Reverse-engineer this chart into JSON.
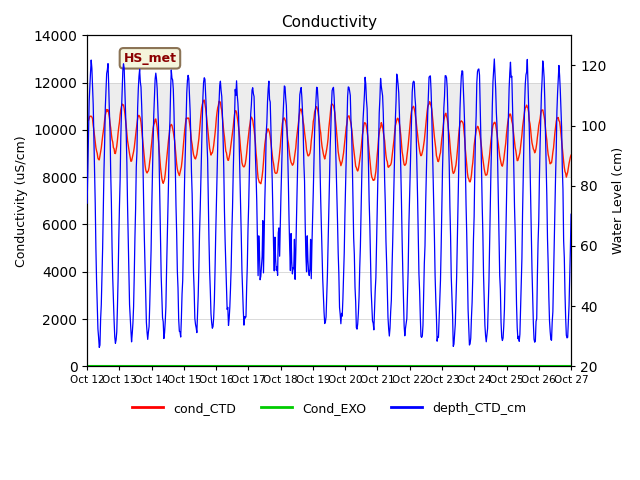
{
  "title": "Conductivity",
  "ylabel_left": "Conductivity (uS/cm)",
  "ylabel_right": "Water Level (cm)",
  "ylim_left": [
    0,
    14000
  ],
  "ylim_right": [
    20,
    130
  ],
  "xlim": [
    0,
    15
  ],
  "xtick_labels": [
    "Oct 12",
    "Oct 13",
    "Oct 14",
    "Oct 15",
    "Oct 16",
    "Oct 17",
    "Oct 18",
    "Oct 19",
    "Oct 20",
    "Oct 21",
    "Oct 22",
    "Oct 23",
    "Oct 24",
    "Oct 25",
    "Oct 26",
    "Oct 27"
  ],
  "xtick_positions": [
    0,
    1,
    2,
    3,
    4,
    5,
    6,
    7,
    8,
    9,
    10,
    11,
    12,
    13,
    14,
    15
  ],
  "shade_band": [
    8000,
    12000
  ],
  "shade_color": "#d3d3d3",
  "shade_alpha": 0.4,
  "hs_met_label": "HS_met",
  "hs_met_color": "#8b0000",
  "hs_met_bg": "#f5f5dc",
  "legend_labels": [
    "cond_CTD",
    "Cond_EXO",
    "depth_CTD_cm"
  ],
  "legend_colors": [
    "#ff0000",
    "#00cc00",
    "#0000ff"
  ],
  "line_cond_color": "#ff2200",
  "line_depth_color": "#0000ff",
  "line_exo_color": "#00cc00",
  "background_color": "#ffffff",
  "grid_color": "#cccccc"
}
